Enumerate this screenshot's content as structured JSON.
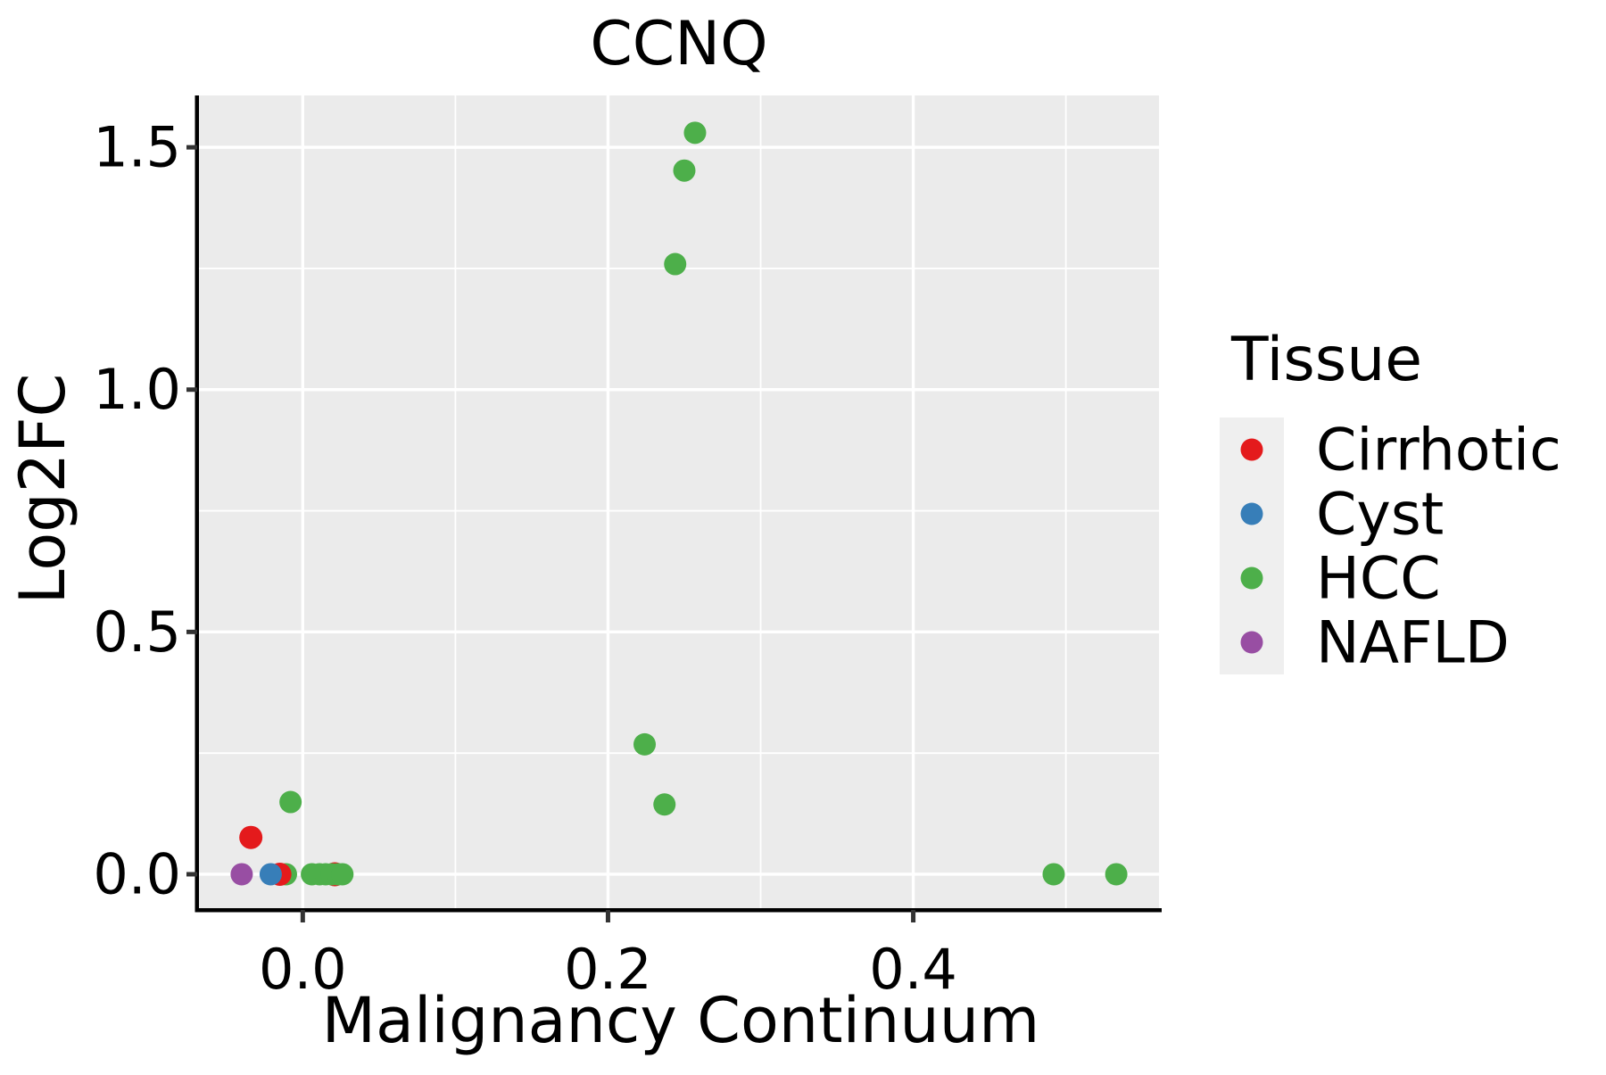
{
  "chart_data": {
    "type": "scatter",
    "title": "CCNQ",
    "xlabel": "Malignancy Continuum",
    "ylabel": "Log2FC",
    "legend_title": "Tissue",
    "legend_position": "right",
    "grid": "major-and-minor",
    "xlim": [
      -0.068,
      0.561
    ],
    "ylim": [
      -0.07,
      1.607
    ],
    "x_ticks": [
      0.0,
      0.2,
      0.4
    ],
    "x_tick_labels": [
      "0.0",
      "0.2",
      "0.4"
    ],
    "x_minor_ticks": [
      0.1,
      0.3,
      0.5
    ],
    "y_ticks": [
      0.0,
      0.5,
      1.0,
      1.5
    ],
    "y_tick_labels": [
      "0.0",
      "0.5",
      "1.0",
      "1.5"
    ],
    "y_minor_ticks": [
      0.25,
      0.75,
      1.25
    ],
    "colors": {
      "panel_bg": "#EBEBEB",
      "grid": "#FFFFFF",
      "axis_line": "#000000",
      "tick_mark": "#333333",
      "text": "#000000",
      "legend_key_bg": "#EFEFEF"
    },
    "tissues": [
      {
        "name": "Cirrhotic",
        "color": "#E41A1C"
      },
      {
        "name": "Cyst",
        "color": "#377EB8"
      },
      {
        "name": "HCC",
        "color": "#4DAF4A"
      },
      {
        "name": "NAFLD",
        "color": "#984EA3"
      }
    ],
    "points": [
      {
        "tissue": "Cirrhotic",
        "x": 0.021,
        "y": 0.0,
        "r": 13.5
      },
      {
        "tissue": "HCC",
        "x": 0.257,
        "y": 1.53
      },
      {
        "tissue": "HCC",
        "x": 0.25,
        "y": 1.452
      },
      {
        "tissue": "HCC",
        "x": 0.244,
        "y": 1.259
      },
      {
        "tissue": "HCC",
        "x": 0.224,
        "y": 0.268
      },
      {
        "tissue": "HCC",
        "x": 0.237,
        "y": 0.144
      },
      {
        "tissue": "HCC",
        "x": -0.008,
        "y": 0.149
      },
      {
        "tissue": "HCC",
        "x": -0.011,
        "y": 0.0
      },
      {
        "tissue": "HCC",
        "x": 0.006,
        "y": 0.0
      },
      {
        "tissue": "HCC",
        "x": 0.011,
        "y": 0.0
      },
      {
        "tissue": "HCC",
        "x": 0.015,
        "y": 0.0
      },
      {
        "tissue": "HCC",
        "x": 0.019,
        "y": 0.0
      },
      {
        "tissue": "HCC",
        "x": 0.023,
        "y": 0.0
      },
      {
        "tissue": "HCC",
        "x": 0.026,
        "y": 0.0
      },
      {
        "tissue": "HCC",
        "x": 0.492,
        "y": 0.0
      },
      {
        "tissue": "HCC",
        "x": 0.533,
        "y": 0.0
      },
      {
        "tissue": "Cirrhotic",
        "x": -0.034,
        "y": 0.076,
        "r": 13
      },
      {
        "tissue": "Cirrhotic",
        "x": -0.015,
        "y": 0.0,
        "r": 13
      },
      {
        "tissue": "Cyst",
        "x": -0.021,
        "y": 0.0
      },
      {
        "tissue": "NAFLD",
        "x": -0.04,
        "y": 0.0
      }
    ]
  }
}
